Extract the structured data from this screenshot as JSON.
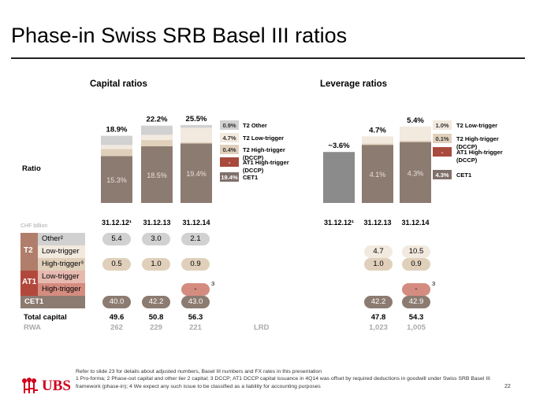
{
  "title": "Phase-in Swiss SRB Basel III ratios",
  "sections": {
    "capital": "Capital ratios",
    "leverage": "Leverage ratios"
  },
  "ratio_label": "Ratio",
  "chf_label": "CHF billion",
  "colors": {
    "cet1": "#8c7b71",
    "t2_high": "#e0d0bb",
    "t2_low": "#f2e9df",
    "other": "#d2d1d1",
    "at1": "#c46a5a",
    "leverage_cet1": "#8b8b8b",
    "at1_label": "#a94a3e",
    "cet1_label": "#80706a"
  },
  "chart_data": [
    {
      "type": "bar",
      "stacked": true,
      "title": "Capital ratios",
      "categories": [
        "31.12.12¹",
        "31.12.13",
        "31.12.14"
      ],
      "series": [
        {
          "name": "CET1",
          "values": [
            15.3,
            18.5,
            19.4
          ]
        },
        {
          "name": "T2 High-trigger (DCCP)",
          "values": [
            null,
            null,
            0.4
          ]
        },
        {
          "name": "T2 Low-trigger",
          "values": [
            null,
            null,
            4.7
          ]
        },
        {
          "name": "T2 Other",
          "values": [
            null,
            null,
            0.9
          ]
        },
        {
          "name": "AT1 High-trigger (DCCP)",
          "values": [
            null,
            null,
            null
          ]
        }
      ],
      "totals": [
        "18.9%",
        "22.2%",
        "25.5%"
      ],
      "segment_labels": {
        "cet1": [
          "15.3%",
          "18.5%",
          "19.4%"
        ]
      },
      "legend": [
        {
          "value": "0.9%",
          "name": "T2 Other"
        },
        {
          "value": "4.7%",
          "name": "T2 Low-trigger"
        },
        {
          "value": "0.4%",
          "name": "T2 High-trigger (DCCP)"
        },
        {
          "value": "-",
          "name": "AT1 High-trigger (DCCP)"
        },
        {
          "value": "19.4%",
          "name": "CET1"
        }
      ]
    },
    {
      "type": "bar",
      "stacked": true,
      "title": "Leverage ratios",
      "categories": [
        "31.12.12¹",
        "31.12.13",
        "31.12.14"
      ],
      "series": [
        {
          "name": "CET1",
          "values": [
            3.6,
            4.1,
            4.3
          ]
        },
        {
          "name": "T2 High-trigger (DCCP)",
          "values": [
            null,
            null,
            0.1
          ]
        },
        {
          "name": "T2 Low-trigger",
          "values": [
            null,
            null,
            1.0
          ]
        },
        {
          "name": "AT1 High-trigger (DCCP)",
          "values": [
            null,
            null,
            null
          ]
        }
      ],
      "totals": [
        "~3.6%",
        "4.7%",
        "5.4%"
      ],
      "segment_labels": {
        "cet1": [
          "",
          "4.1%",
          "4.3%"
        ]
      },
      "legend": [
        {
          "value": "1.0%",
          "name": "T2 Low-trigger"
        },
        {
          "value": "0.1%",
          "name": "T2 High-trigger (DCCP)"
        },
        {
          "value": "-",
          "name": "AT1 High-trigger (DCCP)"
        },
        {
          "value": "4.3%",
          "name": "CET1"
        }
      ]
    }
  ],
  "table": {
    "groups": [
      {
        "label": "T2",
        "rows": [
          {
            "label": "Other²"
          },
          {
            "label": "Low-trigger"
          },
          {
            "label": "High-trigger³"
          }
        ]
      },
      {
        "label": "AT1",
        "rows": [
          {
            "label": "Low-trigger"
          },
          {
            "label": "High-trigger"
          }
        ]
      },
      {
        "label": "CET1"
      }
    ],
    "capital": {
      "other": [
        "5.4",
        "3.0",
        "2.1"
      ],
      "low": [
        "",
        "",
        ""
      ],
      "high": [
        "0.5",
        "1.0",
        "0.9"
      ],
      "at1_high": [
        "",
        "",
        "-"
      ],
      "cet1": [
        "40.0",
        "42.2",
        "43.0"
      ],
      "total": [
        "49.6",
        "50.8",
        "56.3"
      ],
      "rwa": [
        "262",
        "229",
        "221"
      ]
    },
    "leverage": {
      "low": [
        "",
        "4.7",
        "10.5"
      ],
      "high": [
        "",
        "1.0",
        "0.9"
      ],
      "at1_high": [
        "",
        "",
        "-"
      ],
      "cet1": [
        "",
        "42.2",
        "42.9"
      ],
      "total": [
        "",
        "47.8",
        "54.3"
      ],
      "lrd": [
        "",
        "1,023",
        "1,005"
      ]
    },
    "footnote_mark": "3",
    "total_label": "Total capital",
    "rwa_label": "RWA",
    "lrd_label": "LRD"
  },
  "footer": {
    "line1": "Refer to slide 23 for details about adjusted numbers, Basel III numbers and FX rates in this presentation",
    "line2": "1 Pro-forma; 2 Phase-out capital and other tier 2 capital; 3 DCCP; AT1 DCCP capital issuance in 4Q14 was offset by required deductions in goodwill under Swiss SRB Basel III framework (phase-in); 4 We expect any such issue to be classified as a liability for accounting purposes",
    "page": "22",
    "logo": "UBS"
  }
}
